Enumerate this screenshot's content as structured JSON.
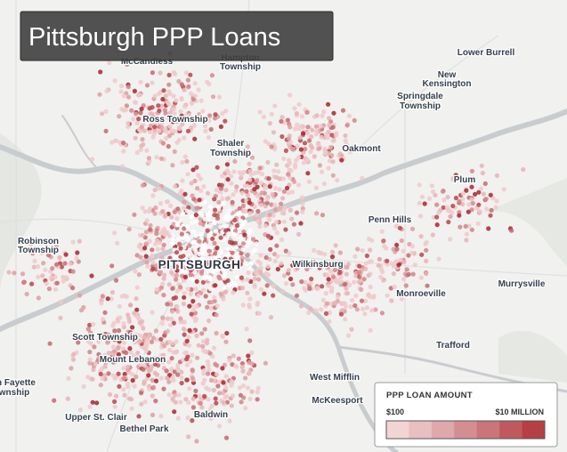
{
  "title": "Pittsburgh PPP Loans",
  "places": [
    [
      "McCandless"
    ],
    [
      "Hampton",
      "Township"
    ],
    [
      "Lower Burrell"
    ],
    [
      "New",
      "Kensington"
    ],
    [
      "Springdale",
      "Township"
    ],
    [
      "Ross Township"
    ],
    [
      "Shaler",
      "Township"
    ],
    [
      "Oakmont"
    ],
    [
      "Plum"
    ],
    [
      "Penn Hills"
    ],
    [
      "Robinson",
      "Township"
    ],
    [
      "Wilkinsburg"
    ],
    [
      "Monroeville"
    ],
    [
      "Murrysville"
    ],
    [
      "Scott Township"
    ],
    [
      "Trafford"
    ],
    [
      "Mount Lebanon"
    ],
    [
      "West Mifflin"
    ],
    [
      "n Fayette",
      "wnship"
    ],
    [
      "McKeesport"
    ],
    [
      "Upper St. Clair"
    ],
    [
      "Baldwin"
    ],
    [
      "Bethel Park"
    ]
  ],
  "city": "PITTSBURGH",
  "legend": {
    "title": "PPP LOAN AMOUNT",
    "min_label": "$100",
    "max_label": "$10 MILLION"
  }
}
